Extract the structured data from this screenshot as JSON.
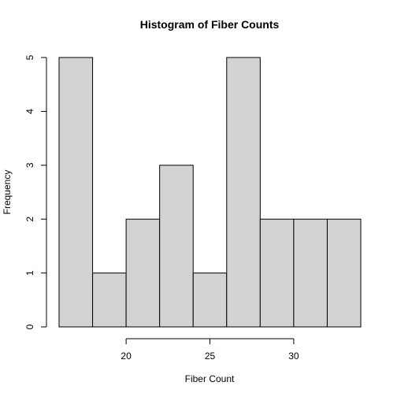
{
  "chart_data": {
    "type": "bar",
    "title": "Histogram of Fiber Counts",
    "xlabel": "Fiber Count",
    "ylabel": "Frequency",
    "bins": [
      {
        "from": 16,
        "to": 18,
        "count": 5
      },
      {
        "from": 18,
        "to": 20,
        "count": 1
      },
      {
        "from": 20,
        "to": 22,
        "count": 2
      },
      {
        "from": 22,
        "to": 24,
        "count": 3
      },
      {
        "from": 24,
        "to": 26,
        "count": 1
      },
      {
        "from": 26,
        "to": 28,
        "count": 5
      },
      {
        "from": 28,
        "to": 30,
        "count": 2
      },
      {
        "from": 30,
        "to": 32,
        "count": 2
      },
      {
        "from": 32,
        "to": 34,
        "count": 2
      }
    ],
    "xlim": [
      16,
      34
    ],
    "ylim": [
      0,
      5
    ],
    "x_ticks": [
      "20",
      "25",
      "30"
    ],
    "y_ticks": [
      "0",
      "1",
      "2",
      "3",
      "4",
      "5"
    ],
    "bar_color": "#d3d3d3",
    "border_color": "#000000",
    "grid": false,
    "legend": "none"
  }
}
